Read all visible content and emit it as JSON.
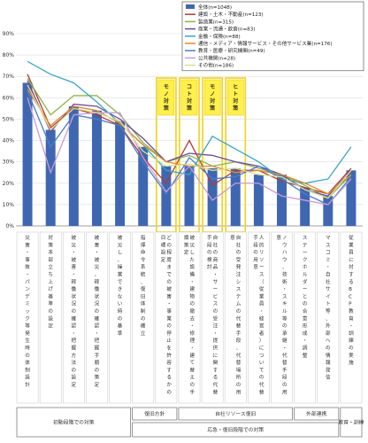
{
  "chart_data": {
    "type": "bar",
    "yticks": [
      "0%",
      "10%",
      "20%",
      "30%",
      "40%",
      "50%",
      "60%",
      "70%",
      "80%",
      "90%"
    ],
    "ylim": [
      0,
      90
    ],
    "categories": [
      "災害・事故・パンデミック等発生時の体制設計",
      "対策本部立ち上げ基準の設定",
      "被災・被害・稼働状況の確認・把握方法の設定",
      "被害・被災、稼働状況の確認・把握手順の策定",
      "被災し、操業できない時の基準",
      "指揮命令系統、復旧体制の確立",
      "どの程度までの被害・事業の停止を許容するかの目標設定",
      "被災した設備・建物の撤去・修理・建て替えの手順策定",
      "自社の商品・サービスの受注・提供に関する代替手段の検討",
      "自社の受発注システムの代替手段、代替場所の用意",
      "人的リソース（従業員・経営者）についての代替手段の用意",
      "ノウハウ、技術・スキル等の承継・代替手段の用意",
      "ステークホルダーとの合意形成・調整",
      "マスコミ・自社サイト等、外部への情報発信",
      "従業員に対するBCP教育・訓練の実施"
    ],
    "series": [
      {
        "name": "全体(n=1048)",
        "values": [
          67,
          45,
          56,
          54,
          49,
          37,
          28,
          28,
          27,
          27,
          24,
          24,
          18,
          14,
          26
        ]
      },
      {
        "name": "建設・土木・不動産(n=123)",
        "values": [
          71,
          46,
          55,
          52,
          47,
          32,
          20,
          40,
          19,
          26,
          26,
          21,
          18,
          15,
          27
        ]
      },
      {
        "name": "製造業(n=315)",
        "values": [
          69,
          52,
          61,
          61,
          52,
          39,
          30,
          33,
          28,
          30,
          27,
          24,
          19,
          13,
          24
        ]
      },
      {
        "name": "商業・流通・飲食(n=83)",
        "values": [
          68,
          44,
          57,
          56,
          50,
          41,
          30,
          34,
          33,
          30,
          28,
          24,
          17,
          14,
          26
        ]
      },
      {
        "name": "金融・保険(n=88)",
        "values": [
          77,
          71,
          67,
          58,
          48,
          38,
          26,
          24,
          42,
          36,
          30,
          22,
          20,
          22,
          37
        ]
      },
      {
        "name": "通信・メディア・情報サービス・その他サービス業(n=176)",
        "values": [
          64,
          47,
          56,
          54,
          48,
          38,
          30,
          28,
          28,
          25,
          26,
          24,
          20,
          15,
          24
        ]
      },
      {
        "name": "教育・医療・研究機関(n=49)",
        "values": [
          63,
          37,
          52,
          50,
          47,
          30,
          15,
          32,
          22,
          23,
          28,
          22,
          15,
          10,
          23
        ]
      },
      {
        "name": "公共機関(n=28)",
        "values": [
          60,
          25,
          52,
          53,
          53,
          32,
          16,
          28,
          12,
          20,
          20,
          14,
          12,
          10,
          22
        ]
      },
      {
        "name": "その他(n=186)",
        "values": [
          66,
          45,
          55,
          53,
          49,
          35,
          28,
          29,
          26,
          27,
          24,
          23,
          17,
          13,
          26
        ]
      }
    ],
    "series_colors": [
      "#3f67b1",
      "#b23a3a",
      "#8cb34a",
      "#6b4b9b",
      "#3aa6c4",
      "#e28a2b",
      "#4a7ec8",
      "#c89bd8",
      "#d8e08a"
    ],
    "callouts": [
      "モノ対策",
      "コト対策",
      "モノ対策",
      "ヒト対策"
    ],
    "bottom_groups": [
      "初動段階での対策",
      "復旧方針",
      "自社リソース復旧",
      "外部連携",
      "教育・訓練",
      "応急・復旧段階での対策"
    ]
  }
}
